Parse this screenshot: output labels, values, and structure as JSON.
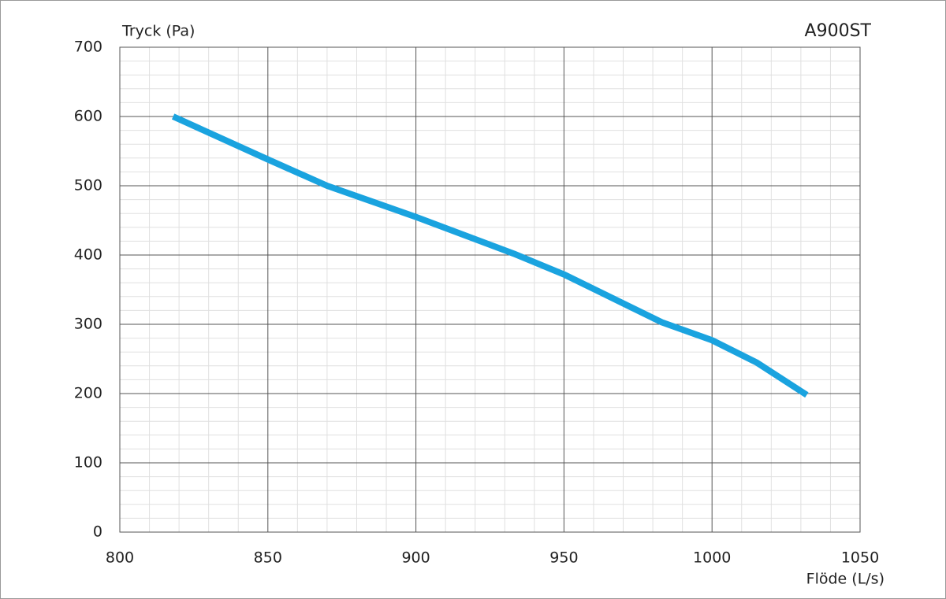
{
  "chart_data": {
    "type": "line",
    "title": "A900ST",
    "y_label": "Tryck (Pa)",
    "x_label": "Flöde (L/s)",
    "x": [
      818,
      850,
      870,
      900,
      933,
      950,
      983,
      1000,
      1015,
      1032
    ],
    "series": [
      {
        "color": "#1aa3df",
        "values": [
          600,
          538,
          500,
          455,
          402,
          372,
          303,
          277,
          245,
          198
        ]
      }
    ],
    "xlim": [
      800,
      1050
    ],
    "xticks": [
      800,
      850,
      900,
      950,
      1000,
      1050
    ],
    "ylim": [
      0,
      700
    ],
    "yticks": [
      0,
      100,
      200,
      300,
      400,
      500,
      600,
      700
    ],
    "grid": true
  }
}
